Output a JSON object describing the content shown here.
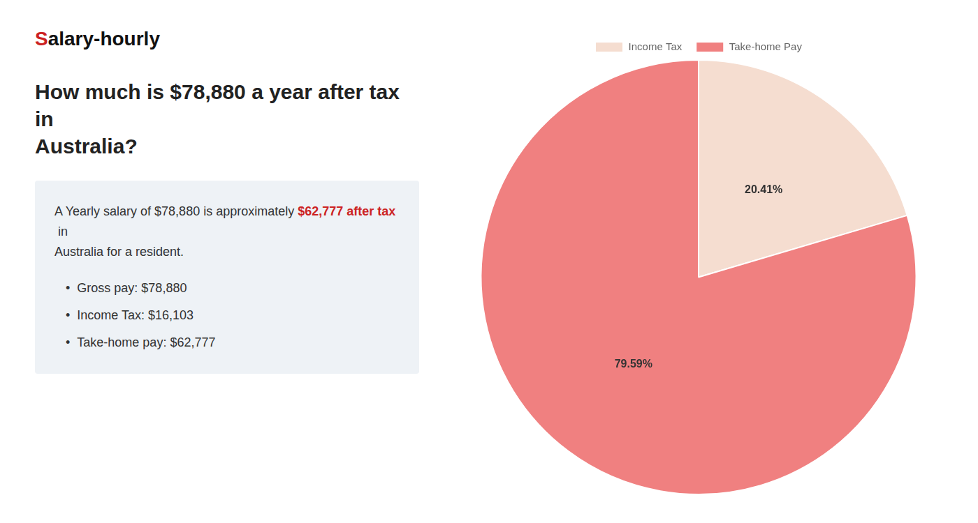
{
  "chart_data": {
    "type": "pie",
    "title": [
      "How much is $78,880 a year after tax in",
      "Australia?"
    ],
    "annotations": [
      [
        {
          "text": "S",
          "color": "#cc2222"
        },
        {
          "text": "alary-hourly"
        }
      ],
      [
        {
          "text": "A Yearly salary of $78,880 is approximately "
        },
        {
          "text": "$62,777 after tax",
          "color": "#cc2222"
        },
        {
          "text": " in"
        }
      ],
      [
        {
          "text": "Australia for a resident."
        }
      ],
      [
        {
          "text": "•"
        },
        {
          "text": "Gross pay: $78,880"
        }
      ],
      [
        {
          "text": "•"
        },
        {
          "text": "Income Tax: $16,103"
        }
      ],
      [
        {
          "text": "•"
        },
        {
          "text": "Take-home pay: $62,777"
        }
      ]
    ],
    "categories": [
      "Income Tax",
      "Take-home Pay"
    ],
    "values": [
      20.41,
      79.59
    ],
    "value_labels": [
      "20.41%",
      "79.59%"
    ],
    "colors": [
      "#f5ddd0",
      "#f08080"
    ],
    "data_labels": true,
    "legend": "top"
  }
}
